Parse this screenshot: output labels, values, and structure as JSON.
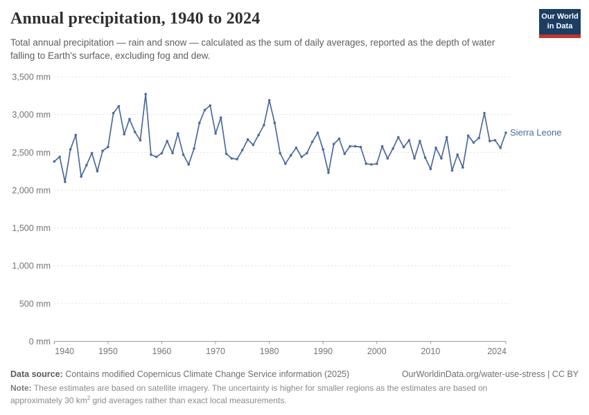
{
  "header": {
    "title": "Annual precipitation, 1940 to 2024",
    "subtitle": "Total annual precipitation — rain and snow — calculated as the sum of daily averages, reported as the depth of water falling to Earth's surface, excluding fog and dew.",
    "logo_line1": "Our World",
    "logo_line2": "in Data"
  },
  "chart_data": {
    "type": "line",
    "title": "Annual precipitation, 1940 to 2024",
    "entity_label": "Sierra Leone",
    "unit": "mm",
    "xlabel": "",
    "ylabel": "",
    "ylim": [
      0,
      3500
    ],
    "grid": "dashed-horizontal",
    "legend_position": "end-of-line-label",
    "y_ticks": [
      {
        "value": 0,
        "label": "0 mm"
      },
      {
        "value": 500,
        "label": "500 mm"
      },
      {
        "value": 1000,
        "label": "1,000 mm"
      },
      {
        "value": 1500,
        "label": "1,500 mm"
      },
      {
        "value": 2000,
        "label": "2,000 mm"
      },
      {
        "value": 2500,
        "label": "2,500 mm"
      },
      {
        "value": 3000,
        "label": "3,000 mm"
      },
      {
        "value": 3500,
        "label": "3,500 mm"
      }
    ],
    "x_ticks": [
      1940,
      1950,
      1960,
      1970,
      1980,
      1990,
      2000,
      2010,
      2024
    ],
    "years": [
      1940,
      1941,
      1942,
      1943,
      1944,
      1945,
      1946,
      1947,
      1948,
      1949,
      1950,
      1951,
      1952,
      1953,
      1954,
      1955,
      1956,
      1957,
      1958,
      1959,
      1960,
      1961,
      1962,
      1963,
      1964,
      1965,
      1966,
      1967,
      1968,
      1969,
      1970,
      1971,
      1972,
      1973,
      1974,
      1975,
      1976,
      1977,
      1978,
      1979,
      1980,
      1981,
      1982,
      1983,
      1984,
      1985,
      1986,
      1987,
      1988,
      1989,
      1990,
      1991,
      1992,
      1993,
      1994,
      1995,
      1996,
      1997,
      1998,
      1999,
      2000,
      2001,
      2002,
      2003,
      2004,
      2005,
      2006,
      2007,
      2008,
      2009,
      2010,
      2011,
      2012,
      2013,
      2014,
      2015,
      2016,
      2017,
      2018,
      2019,
      2020,
      2021,
      2022,
      2023,
      2024
    ],
    "series": [
      {
        "name": "Sierra Leone",
        "color": "#4c6a9c",
        "values": [
          2380,
          2440,
          2110,
          2540,
          2730,
          2180,
          2330,
          2490,
          2250,
          2520,
          2570,
          3020,
          3110,
          2740,
          2940,
          2770,
          2660,
          3270,
          2470,
          2440,
          2490,
          2650,
          2490,
          2750,
          2470,
          2340,
          2550,
          2890,
          3060,
          3120,
          2750,
          2960,
          2480,
          2420,
          2410,
          2530,
          2670,
          2600,
          2730,
          2860,
          3190,
          2890,
          2490,
          2350,
          2460,
          2560,
          2440,
          2490,
          2640,
          2760,
          2540,
          2230,
          2610,
          2680,
          2480,
          2580,
          2580,
          2570,
          2350,
          2340,
          2350,
          2580,
          2420,
          2550,
          2700,
          2570,
          2660,
          2420,
          2650,
          2430,
          2280,
          2560,
          2420,
          2700,
          2260,
          2470,
          2300,
          2720,
          2630,
          2690,
          3020,
          2650,
          2660,
          2560,
          2760
        ]
      }
    ],
    "colors": {
      "line": "#4c6a9c",
      "grid": "#dcdcdc",
      "axis": "#9a9a9a",
      "tick_text": "#737373",
      "entity_text": "#4c6a9c"
    }
  },
  "footer": {
    "datasource_label": "Data source:",
    "datasource_text": " Contains modified Copernicus Climate Change Service information (2025)",
    "link_text": "OurWorldinData.org/water-use-stress | CC BY",
    "note_label": "Note:",
    "note_part1": " These estimates are based on satellite imagery. The uncertainty is higher for smaller regions as the estimates are based on approximately 30 km",
    "note_sup": "2",
    "note_part2": " grid averages rather than exact local measurements."
  }
}
